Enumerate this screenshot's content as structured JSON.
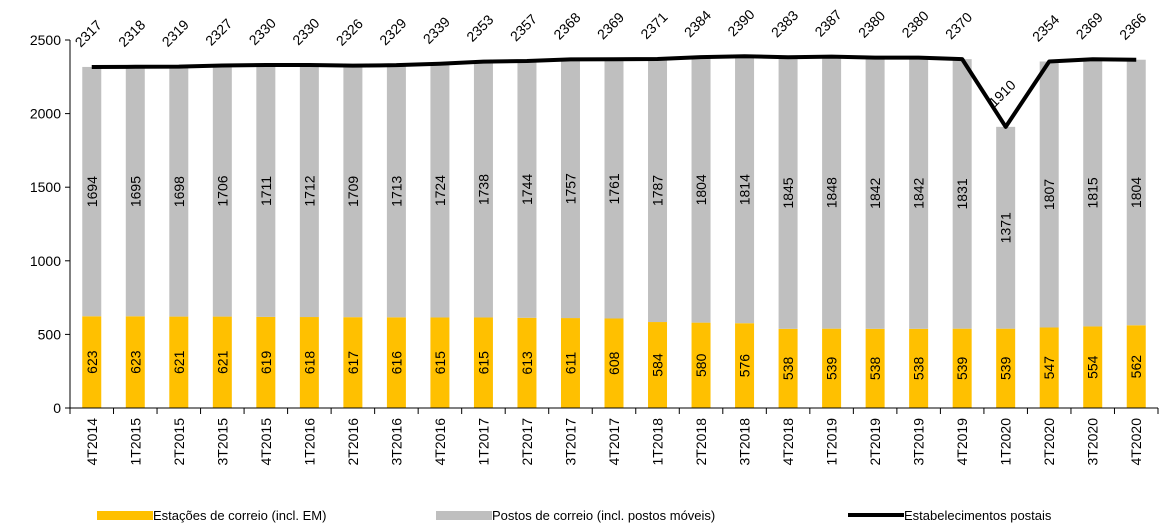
{
  "chart_data": {
    "type": "bar",
    "stacked": true,
    "categories": [
      "4T2014",
      "1T2015",
      "2T2015",
      "3T2015",
      "4T2015",
      "1T2016",
      "2T2016",
      "3T2016",
      "4T2016",
      "1T2017",
      "2T2017",
      "3T2017",
      "4T2017",
      "1T2018",
      "2T2018",
      "3T2018",
      "4T2018",
      "1T2019",
      "2T2019",
      "3T2019",
      "4T2019",
      "1T2020",
      "2T2020",
      "3T2020",
      "4T2020"
    ],
    "series": [
      {
        "name": "Estações de correio (incl. EM)",
        "kind": "bar",
        "color": "#FFC000",
        "values": [
          623,
          623,
          621,
          621,
          619,
          618,
          617,
          616,
          615,
          615,
          613,
          611,
          608,
          584,
          580,
          576,
          538,
          539,
          538,
          538,
          539,
          539,
          547,
          554,
          562
        ]
      },
      {
        "name": "Postos de correio (incl. postos móveis)",
        "kind": "bar",
        "color": "#BFBFBF",
        "values": [
          1694,
          1695,
          1698,
          1706,
          1711,
          1712,
          1709,
          1713,
          1724,
          1738,
          1744,
          1757,
          1761,
          1787,
          1804,
          1814,
          1845,
          1848,
          1842,
          1842,
          1831,
          1371,
          1807,
          1815,
          1804
        ]
      },
      {
        "name": "Estabelecimentos postais",
        "kind": "line",
        "color": "#000000",
        "values": [
          2317,
          2318,
          2319,
          2327,
          2330,
          2330,
          2326,
          2329,
          2339,
          2353,
          2357,
          2368,
          2369,
          2371,
          2384,
          2390,
          2383,
          2387,
          2380,
          2380,
          2370,
          1910,
          2354,
          2369,
          2366
        ]
      }
    ],
    "yticks": [
      0,
      500,
      1000,
      1500,
      2000,
      2500
    ],
    "ylim": [
      0,
      2500
    ],
    "grid": false,
    "legend": "bottom"
  }
}
